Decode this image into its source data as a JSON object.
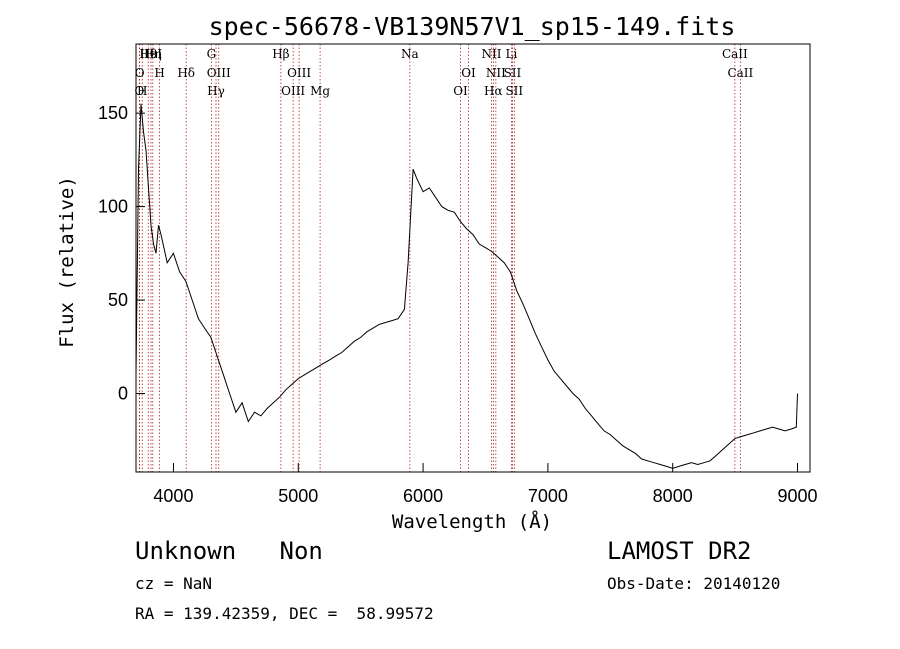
{
  "chart_data": {
    "type": "line",
    "title": "spec-56678-VB139N57V1_sp15-149.fits",
    "xlabel": "Wavelength (Å)",
    "ylabel": "Flux (relative)",
    "xlim": [
      3700,
      9100
    ],
    "ylim": [
      -42,
      187
    ],
    "x_ticks": [
      4000,
      5000,
      6000,
      7000,
      8000,
      9000
    ],
    "y_ticks": [
      0,
      50,
      100,
      150
    ],
    "grid": false,
    "series": [
      {
        "x": [
          3700,
          3720,
          3740,
          3760,
          3780,
          3800,
          3820,
          3840,
          3860,
          3880,
          3900,
          3950,
          4000,
          4050,
          4100,
          4150,
          4200,
          4250,
          4300,
          4350,
          4400,
          4450,
          4500,
          4550,
          4600,
          4650,
          4700,
          4750,
          4800,
          4850,
          4900,
          4950,
          5000,
          5050,
          5100,
          5150,
          5200,
          5250,
          5300,
          5350,
          5400,
          5450,
          5500,
          5550,
          5600,
          5650,
          5700,
          5750,
          5800,
          5850,
          5880,
          5900,
          5920,
          5950,
          6000,
          6050,
          6100,
          6150,
          6200,
          6250,
          6300,
          6350,
          6400,
          6450,
          6500,
          6550,
          6600,
          6650,
          6700,
          6750,
          6800,
          6850,
          6900,
          6950,
          7000,
          7050,
          7100,
          7150,
          7200,
          7250,
          7300,
          7350,
          7400,
          7450,
          7500,
          7550,
          7600,
          7650,
          7700,
          7750,
          7800,
          7850,
          7900,
          7950,
          8000,
          8050,
          8100,
          8150,
          8200,
          8250,
          8300,
          8350,
          8400,
          8450,
          8500,
          8550,
          8600,
          8650,
          8700,
          8750,
          8800,
          8850,
          8900,
          8950,
          8990,
          9000
        ],
        "y": [
          10,
          120,
          155,
          140,
          130,
          110,
          90,
          80,
          75,
          90,
          85,
          70,
          75,
          65,
          60,
          50,
          40,
          35,
          30,
          20,
          10,
          0,
          -10,
          -5,
          -15,
          -10,
          -12,
          -8,
          -5,
          -2,
          2,
          5,
          8,
          10,
          12,
          14,
          16,
          18,
          20,
          22,
          25,
          28,
          30,
          33,
          35,
          37,
          38,
          39,
          40,
          45,
          70,
          95,
          120,
          115,
          108,
          110,
          105,
          100,
          98,
          97,
          92,
          88,
          85,
          80,
          78,
          76,
          73,
          70,
          65,
          55,
          48,
          40,
          32,
          25,
          18,
          12,
          8,
          4,
          0,
          -3,
          -8,
          -12,
          -16,
          -20,
          -22,
          -25,
          -28,
          -30,
          -32,
          -35,
          -36,
          -37,
          -38,
          -39,
          -40,
          -39,
          -38,
          -37,
          -38,
          -37,
          -36,
          -33,
          -30,
          -27,
          -24,
          -23,
          -22,
          -21,
          -20,
          -19,
          -18,
          -19,
          -20,
          -19,
          -18,
          0
        ]
      }
    ],
    "lines": [
      {
        "label": "Hθ",
        "x": 3798
      },
      {
        "label": "H",
        "x": 3889
      },
      {
        "label": "O",
        "x": 3727
      },
      {
        "label": "HeI",
        "x": 3820
      },
      {
        "label": "O",
        "x": 3729
      },
      {
        "label": "H",
        "x": 3750
      },
      {
        "label": "Hη",
        "x": 3835
      },
      {
        "label": "Hδ",
        "x": 4102
      },
      {
        "label": "Hγ",
        "x": 4341
      },
      {
        "label": "G",
        "x": 4304
      },
      {
        "label": "OIII",
        "x": 4363
      },
      {
        "label": "OIII",
        "x": 4959
      },
      {
        "label": "Hβ",
        "x": 4861
      },
      {
        "label": "OIII",
        "x": 5007
      },
      {
        "label": "Mg",
        "x": 5175
      },
      {
        "label": "Na",
        "x": 5894
      },
      {
        "label": "OI",
        "x": 6364
      },
      {
        "label": "OI",
        "x": 6300
      },
      {
        "label": "NII",
        "x": 6548
      },
      {
        "label": "NII",
        "x": 6583
      },
      {
        "label": "Hα",
        "x": 6563
      },
      {
        "label": "Li",
        "x": 6708
      },
      {
        "label": "SII",
        "x": 6716
      },
      {
        "label": "SII",
        "x": 6731
      },
      {
        "label": "CaII",
        "x": 8498
      },
      {
        "label": "CaII",
        "x": 8542
      }
    ]
  },
  "info": {
    "class_line": "Unknown   Non",
    "survey": "LAMOST DR2",
    "cz": "cz = NaN",
    "obs_date": "Obs-Date: 20140120",
    "radec": "RA = 139.42359, DEC =  58.99572"
  }
}
